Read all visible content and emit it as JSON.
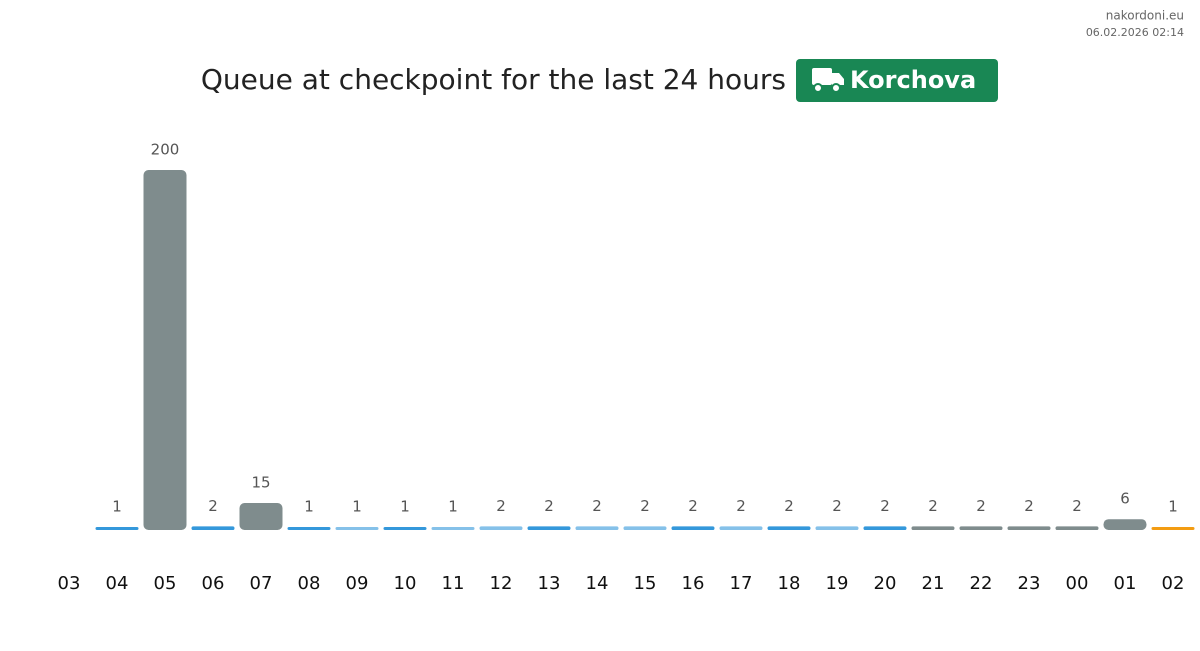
{
  "site": "nakordoni.eu",
  "timestamp": "06.02.2026 02:14",
  "chart_data": {
    "type": "bar",
    "title": "Queue at checkpoint for the last 24 hours",
    "badge": "Korchova",
    "categories": [
      "03",
      "04",
      "05",
      "06",
      "07",
      "08",
      "09",
      "10",
      "11",
      "12",
      "13",
      "14",
      "15",
      "16",
      "17",
      "18",
      "19",
      "20",
      "21",
      "22",
      "23",
      "00",
      "01",
      "02"
    ],
    "values": [
      null,
      1,
      200,
      2,
      15,
      1,
      1,
      1,
      1,
      2,
      2,
      2,
      2,
      2,
      2,
      2,
      2,
      2,
      2,
      2,
      2,
      2,
      6,
      1
    ],
    "colors": [
      null,
      "#3498db",
      "#7f8c8d",
      "#3498db",
      "#7f8c8d",
      "#3498db",
      "#85c1e9",
      "#3498db",
      "#85c1e9",
      "#85c1e9",
      "#3498db",
      "#85c1e9",
      "#85c1e9",
      "#3498db",
      "#85c1e9",
      "#3498db",
      "#85c1e9",
      "#3498db",
      "#7f8c8d",
      "#7f8c8d",
      "#7f8c8d",
      "#7f8c8d",
      "#7f8c8d",
      "#f39c12"
    ]
  }
}
